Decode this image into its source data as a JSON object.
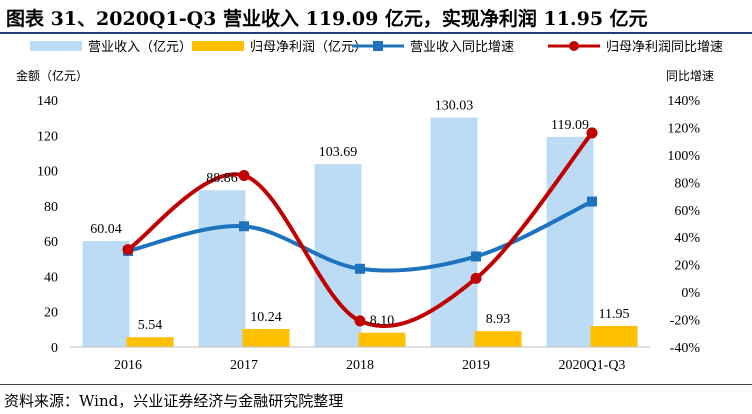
{
  "figure": {
    "title": "图表 31、2020Q1-Q3 营业收入 119.09 亿元，实现净利润 11.95 亿元",
    "source": "资料来源：Wind，兴业证券经济与金融研究院整理"
  },
  "chart_data": {
    "type": "bar",
    "categories": [
      "2016",
      "2017",
      "2018",
      "2019",
      "2020Q1-Q3"
    ],
    "series": [
      {
        "name": "营业收入（亿元）",
        "type": "bar",
        "axis": "left",
        "color": "#bcdcf5",
        "values": [
          60.04,
          88.86,
          103.69,
          130.03,
          119.09
        ],
        "labels": [
          "60.04",
          "88.86",
          "103.69",
          "130.03",
          "119.09"
        ]
      },
      {
        "name": "归母净利润（亿元）",
        "type": "bar",
        "axis": "left",
        "color": "#ffc000",
        "values": [
          5.54,
          10.24,
          8.1,
          8.93,
          11.95
        ],
        "labels": [
          "5.54",
          "10.24",
          "8.10",
          "8.93",
          "11.95"
        ]
      },
      {
        "name": "营业收入同比增速",
        "type": "line",
        "axis": "right",
        "color": "#1e73be",
        "marker": "square",
        "values": [
          30,
          48,
          17,
          26,
          66
        ]
      },
      {
        "name": "归母净利润同比增速",
        "type": "line",
        "axis": "right",
        "color": "#c00000",
        "marker": "circle",
        "values": [
          31,
          85,
          -21,
          10,
          116
        ]
      }
    ],
    "y_left": {
      "label": "金额（亿元）",
      "range": [
        0,
        140
      ],
      "ticks": [
        "0",
        "20",
        "40",
        "60",
        "80",
        "100",
        "120",
        "140"
      ]
    },
    "y_right": {
      "label": "同比增速",
      "range": [
        -40,
        140
      ],
      "ticks": [
        "-40%",
        "-20%",
        "0%",
        "20%",
        "40%",
        "60%",
        "80%",
        "100%",
        "120%",
        "140%"
      ]
    },
    "legend_position": "top",
    "grid": false
  }
}
